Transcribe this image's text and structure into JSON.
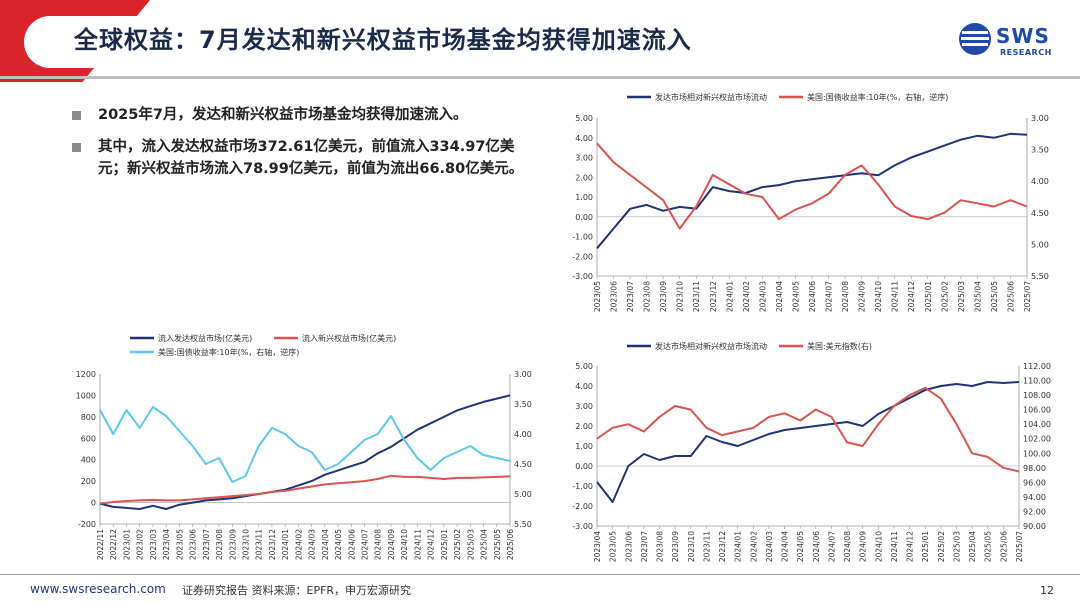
{
  "header": {
    "title": "全球权益：7月发达和新兴权益市场基金均获得加速流入",
    "logo_name": "SWS",
    "logo_sub": "RESEARCH"
  },
  "bullets": [
    "2025年7月，发达和新兴权益市场基金均获得加速流入。",
    "其中，流入发达权益市场372.61亿美元，前值流入334.97亿美元；新兴权益市场流入78.99亿美元，前值为流出66.80亿美元。"
  ],
  "footer": {
    "url": "www.swsresearch.com",
    "note": "证券研究报告  资料来源：EPFR，申万宏源研究",
    "page": "12"
  },
  "colors": {
    "navy": "#1f3478",
    "red": "#d9534f",
    "light_blue": "#5bc8f0",
    "brand_red": "#d8242a"
  },
  "chart_data": [
    {
      "type": "line",
      "x_labels": [
        "2023/05",
        "2023/06",
        "2023/07",
        "2023/08",
        "2023/09",
        "2023/10",
        "2023/11",
        "2023/12",
        "2024/01",
        "2024/02",
        "2024/03",
        "2024/04",
        "2024/05",
        "2024/06",
        "2024/07",
        "2024/08",
        "2024/09",
        "2024/10",
        "2024/11",
        "2024/12",
        "2025/01",
        "2025/02",
        "2025/03",
        "2025/04",
        "2025/05",
        "2025/06",
        "2025/07"
      ],
      "series": [
        {
          "name": "发达市场相对新兴权益市场流动",
          "axis": "left",
          "color": "#1f3478",
          "values": [
            -1.6,
            -0.6,
            0.4,
            0.6,
            0.3,
            0.5,
            0.4,
            1.5,
            1.3,
            1.2,
            1.5,
            1.6,
            1.8,
            1.9,
            2.0,
            2.1,
            2.2,
            2.1,
            2.6,
            3.0,
            3.3,
            3.6,
            3.9,
            4.1,
            4.0,
            4.2,
            4.15
          ]
        },
        {
          "name": "美国:国债收益率:10年(%，右轴，逆序)",
          "axis": "right",
          "color": "#d9534f",
          "values": [
            3.4,
            3.7,
            3.9,
            4.1,
            4.3,
            4.75,
            4.4,
            3.9,
            4.05,
            4.2,
            4.25,
            4.6,
            4.45,
            4.35,
            4.2,
            3.9,
            3.75,
            4.05,
            4.4,
            4.55,
            4.6,
            4.5,
            4.3,
            4.35,
            4.4,
            4.3,
            4.4
          ]
        }
      ],
      "ylim_left": [
        -3.0,
        5.0
      ],
      "yticks_left": [
        "5.00",
        "4.00",
        "3.00",
        "2.00",
        "1.00",
        "0.00",
        "-1.00",
        "-2.00",
        "-3.00"
      ],
      "ylim_right": [
        3.0,
        5.5
      ],
      "yticks_right": [
        "3.00",
        "3.50",
        "4.00",
        "4.50",
        "5.00",
        "5.50"
      ],
      "right_axis_inverted": true,
      "legend": "top"
    },
    {
      "type": "line",
      "x_labels": [
        "2022/11",
        "2022/12",
        "2023/01",
        "2023/02",
        "2023/03",
        "2023/04",
        "2023/05",
        "2023/06",
        "2023/07",
        "2023/08",
        "2023/09",
        "2023/10",
        "2023/11",
        "2023/12",
        "2024/01",
        "2024/02",
        "2024/03",
        "2024/04",
        "2024/05",
        "2024/06",
        "2024/07",
        "2024/08",
        "2024/09",
        "2024/10",
        "2024/11",
        "2024/12",
        "2025/01",
        "2025/02",
        "2025/03",
        "2025/04",
        "2025/05",
        "2025/06"
      ],
      "series": [
        {
          "name": "流入发达权益市场(亿美元)",
          "axis": "left",
          "color": "#1f3478",
          "values": [
            -10,
            -40,
            -50,
            -60,
            -30,
            -60,
            -20,
            0,
            20,
            30,
            40,
            60,
            80,
            100,
            120,
            160,
            200,
            260,
            300,
            340,
            380,
            460,
            520,
            600,
            680,
            740,
            800,
            860,
            900,
            940,
            970,
            1000
          ]
        },
        {
          "name": "流入新兴权益市场(亿美元)",
          "axis": "left",
          "color": "#d9534f",
          "values": [
            -10,
            5,
            15,
            20,
            25,
            20,
            20,
            30,
            40,
            50,
            60,
            70,
            80,
            100,
            110,
            130,
            150,
            170,
            180,
            190,
            200,
            220,
            250,
            240,
            240,
            230,
            220,
            230,
            230,
            235,
            240,
            245
          ]
        },
        {
          "name": "美国:国债收益率:10年(%，右轴，逆序)",
          "axis": "right",
          "color": "#5bc8f0",
          "values": [
            3.6,
            4.0,
            3.6,
            3.9,
            3.55,
            3.7,
            3.95,
            4.2,
            4.5,
            4.4,
            4.8,
            4.7,
            4.2,
            3.9,
            4.0,
            4.2,
            4.3,
            4.6,
            4.5,
            4.3,
            4.1,
            4.0,
            3.7,
            4.1,
            4.4,
            4.6,
            4.4,
            4.3,
            4.2,
            4.35,
            4.4,
            4.45
          ]
        }
      ],
      "ylim_left": [
        -200,
        1200
      ],
      "yticks_left": [
        "1200",
        "1000",
        "800",
        "600",
        "400",
        "200",
        "0",
        "-200"
      ],
      "ylim_right": [
        3.0,
        5.5
      ],
      "yticks_right": [
        "3.00",
        "3.50",
        "4.00",
        "4.50",
        "5.00",
        "5.50"
      ],
      "right_axis_inverted": true,
      "legend": "top"
    },
    {
      "type": "line",
      "x_labels": [
        "2023/04",
        "2023/05",
        "2023/06",
        "2023/07",
        "2023/08",
        "2023/09",
        "2023/10",
        "2023/11",
        "2023/12",
        "2024/01",
        "2024/02",
        "2024/03",
        "2024/04",
        "2024/05",
        "2024/06",
        "2024/07",
        "2024/08",
        "2024/09",
        "2024/10",
        "2024/11",
        "2024/12",
        "2025/01",
        "2025/02",
        "2025/03",
        "2025/04",
        "2025/05",
        "2025/06",
        "2025/07"
      ],
      "series": [
        {
          "name": "发达市场相对新兴权益市场流动",
          "axis": "left",
          "color": "#1f3478",
          "values": [
            -0.8,
            -1.8,
            0.0,
            0.6,
            0.3,
            0.5,
            0.5,
            1.5,
            1.2,
            1.0,
            1.3,
            1.6,
            1.8,
            1.9,
            2.0,
            2.1,
            2.2,
            2.0,
            2.6,
            3.0,
            3.4,
            3.8,
            4.0,
            4.1,
            4.0,
            4.2,
            4.15,
            4.2
          ]
        },
        {
          "name": "美国:美元指数(右)",
          "axis": "right",
          "color": "#d9534f",
          "values": [
            102.0,
            103.5,
            104.0,
            103.0,
            105.0,
            106.5,
            106.0,
            103.5,
            102.5,
            103.0,
            103.5,
            105.0,
            105.5,
            104.5,
            106.0,
            105.0,
            101.5,
            101.0,
            104.0,
            106.5,
            108.0,
            109.0,
            107.5,
            104.0,
            100.0,
            99.5,
            98.0,
            97.5
          ]
        }
      ],
      "ylim_left": [
        -3.0,
        5.0
      ],
      "yticks_left": [
        "5.00",
        "4.00",
        "3.00",
        "2.00",
        "1.00",
        "0.00",
        "-1.00",
        "-2.00",
        "-3.00"
      ],
      "ylim_right": [
        90.0,
        112.0
      ],
      "yticks_right": [
        "112.00",
        "110.00",
        "108.00",
        "106.00",
        "104.00",
        "102.00",
        "100.00",
        "98.00",
        "96.00",
        "94.00",
        "92.00",
        "90.00"
      ],
      "right_axis_inverted": false,
      "legend": "top"
    }
  ]
}
